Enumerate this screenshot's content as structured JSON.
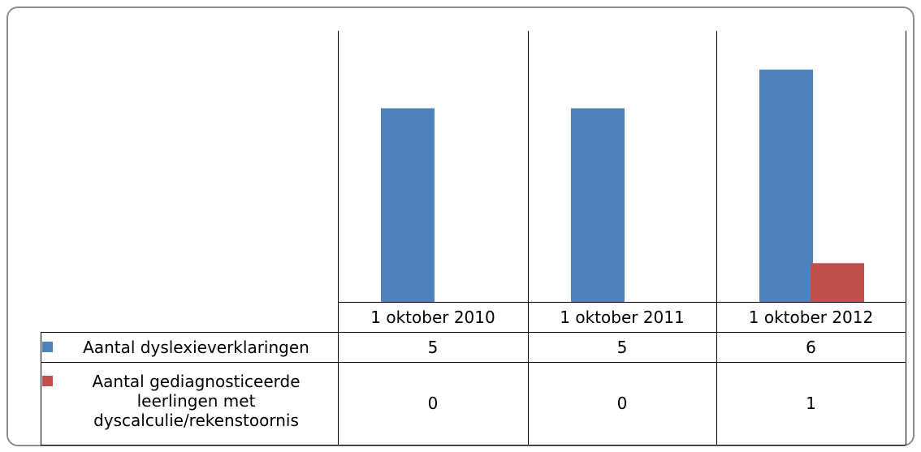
{
  "chart_data": {
    "type": "bar",
    "categories": [
      "1 oktober 2010",
      "1 oktober 2011",
      "1 oktober 2012"
    ],
    "series": [
      {
        "name": "Aantal dyslexieverklaringen",
        "color": "#4f81bd",
        "values": [
          5,
          5,
          6
        ]
      },
      {
        "name": "Aantal gediagnosticeerde leerlingen met dyscalculie/rekenstoornis",
        "color": "#c0504d",
        "values": [
          0,
          0,
          1
        ]
      }
    ],
    "ylim": [
      0,
      7
    ]
  }
}
